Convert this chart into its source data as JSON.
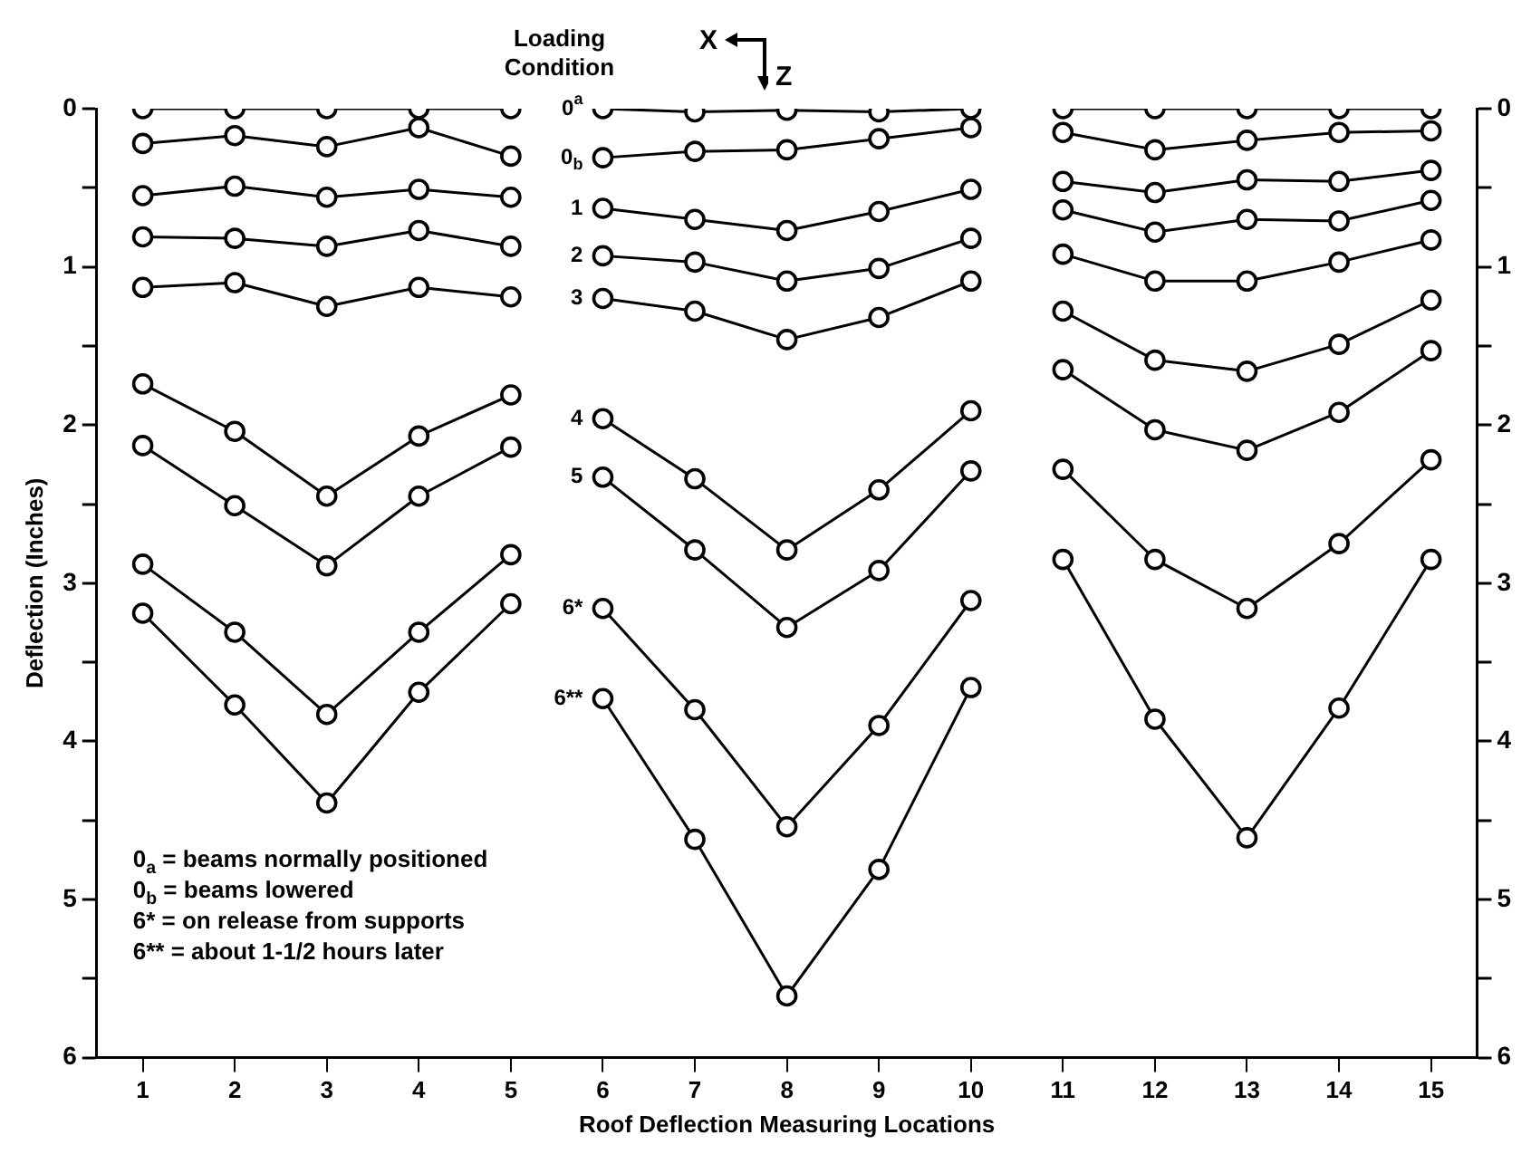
{
  "chart_data": {
    "type": "line",
    "xlabel": "Roof Deflection Measuring Locations",
    "ylabel": "Deflection (Inches)",
    "x": [
      1,
      2,
      3,
      4,
      5,
      5.5,
      6,
      7,
      8,
      9,
      10,
      10.5,
      11,
      12,
      13,
      14,
      15
    ],
    "series": [
      {
        "name": "0$^{a}$",
        "color": "#000000",
        "values": [
          0,
          0,
          0,
          0,
          0,
          null,
          0,
          0.02,
          0.01,
          0.02,
          0,
          null,
          0,
          0,
          0,
          0,
          0
        ]
      },
      {
        "name": "0$_{b}$",
        "color": "#000000",
        "values": [
          0.22,
          0.17,
          0.24,
          0.12,
          0.3,
          null,
          0.31,
          0.27,
          0.26,
          0.19,
          0.12,
          null,
          0.15,
          0.26,
          0.2,
          0.15,
          0.14
        ]
      },
      {
        "name": "1",
        "color": "#000000",
        "values": [
          0.55,
          0.49,
          0.56,
          0.51,
          0.56,
          null,
          0.63,
          0.7,
          0.77,
          0.65,
          0.51,
          null,
          0.46,
          0.53,
          0.45,
          0.46,
          0.39
        ]
      },
      {
        "name": "2",
        "color": "#000000",
        "values": [
          0.81,
          0.82,
          0.87,
          0.77,
          0.87,
          null,
          0.93,
          0.97,
          1.09,
          1.01,
          0.82,
          null,
          0.64,
          0.78,
          0.7,
          0.71,
          0.58
        ]
      },
      {
        "name": "3",
        "color": "#000000",
        "values": [
          1.13,
          1.1,
          1.25,
          1.13,
          1.19,
          null,
          1.2,
          1.28,
          1.46,
          1.32,
          1.09,
          null,
          0.92,
          1.09,
          1.09,
          0.97,
          0.83
        ]
      },
      {
        "name": "4",
        "color": "#000000",
        "values": [
          1.74,
          2.04,
          2.45,
          2.07,
          1.81,
          null,
          1.96,
          2.34,
          2.79,
          2.41,
          1.91,
          null,
          1.28,
          1.59,
          1.66,
          1.49,
          1.21
        ]
      },
      {
        "name": "5",
        "color": "#000000",
        "values": [
          2.13,
          2.51,
          2.89,
          2.45,
          2.14,
          null,
          2.33,
          2.79,
          3.28,
          2.92,
          2.29,
          null,
          1.65,
          2.03,
          2.16,
          1.92,
          1.53
        ]
      },
      {
        "name": "6*",
        "color": "#000000",
        "values": [
          2.88,
          3.31,
          3.83,
          3.31,
          2.82,
          null,
          3.16,
          3.8,
          4.54,
          3.9,
          3.11,
          null,
          2.28,
          2.85,
          3.16,
          2.75,
          2.22
        ]
      },
      {
        "name": "6**",
        "color": "#000000",
        "values": [
          3.19,
          3.77,
          4.39,
          3.69,
          3.13,
          null,
          3.73,
          4.62,
          5.61,
          4.81,
          3.66,
          null,
          2.85,
          3.86,
          4.61,
          3.79,
          2.85
        ]
      }
    ],
    "xlim": [
      0.5,
      15.5
    ],
    "xticks": [
      1,
      2,
      3,
      4,
      5,
      6,
      7,
      8,
      9,
      10,
      11,
      12,
      13,
      14,
      15
    ],
    "ylim": [
      6,
      0
    ],
    "yticks": [
      0,
      {
        "value": 0.5,
        "label": null
      },
      1,
      {
        "value": 1.5,
        "label": null
      },
      2,
      {
        "value": 2.5,
        "label": null
      },
      3,
      {
        "value": 3.5,
        "label": null
      },
      4,
      {
        "value": 4.5,
        "label": null
      },
      5,
      {
        "value": 5.5,
        "label": null
      },
      6
    ],
    "y2lim": [
      6,
      0
    ],
    "y2ticks": [
      0,
      {
        "value": 0.5,
        "label": null
      },
      1,
      {
        "value": 1.5,
        "label": null
      },
      2,
      {
        "value": 2.5,
        "label": null
      },
      3,
      {
        "value": 3.5,
        "label": null
      },
      4,
      {
        "value": 4.5,
        "label": null
      },
      5,
      {
        "value": 5.5,
        "label": null
      },
      6
    ],
    "annotations": [
      "Loading",
      "Condition",
      "X",
      "Z",
      "0$_{a}$ = beams normally positioned",
      "0$_{b}$ = beams lowered",
      "6* = on release from supports",
      "6** = about 1-1/2 hours later"
    ],
    "grid": false,
    "legend": false,
    "marker": "circle",
    "line_style": "solid"
  }
}
